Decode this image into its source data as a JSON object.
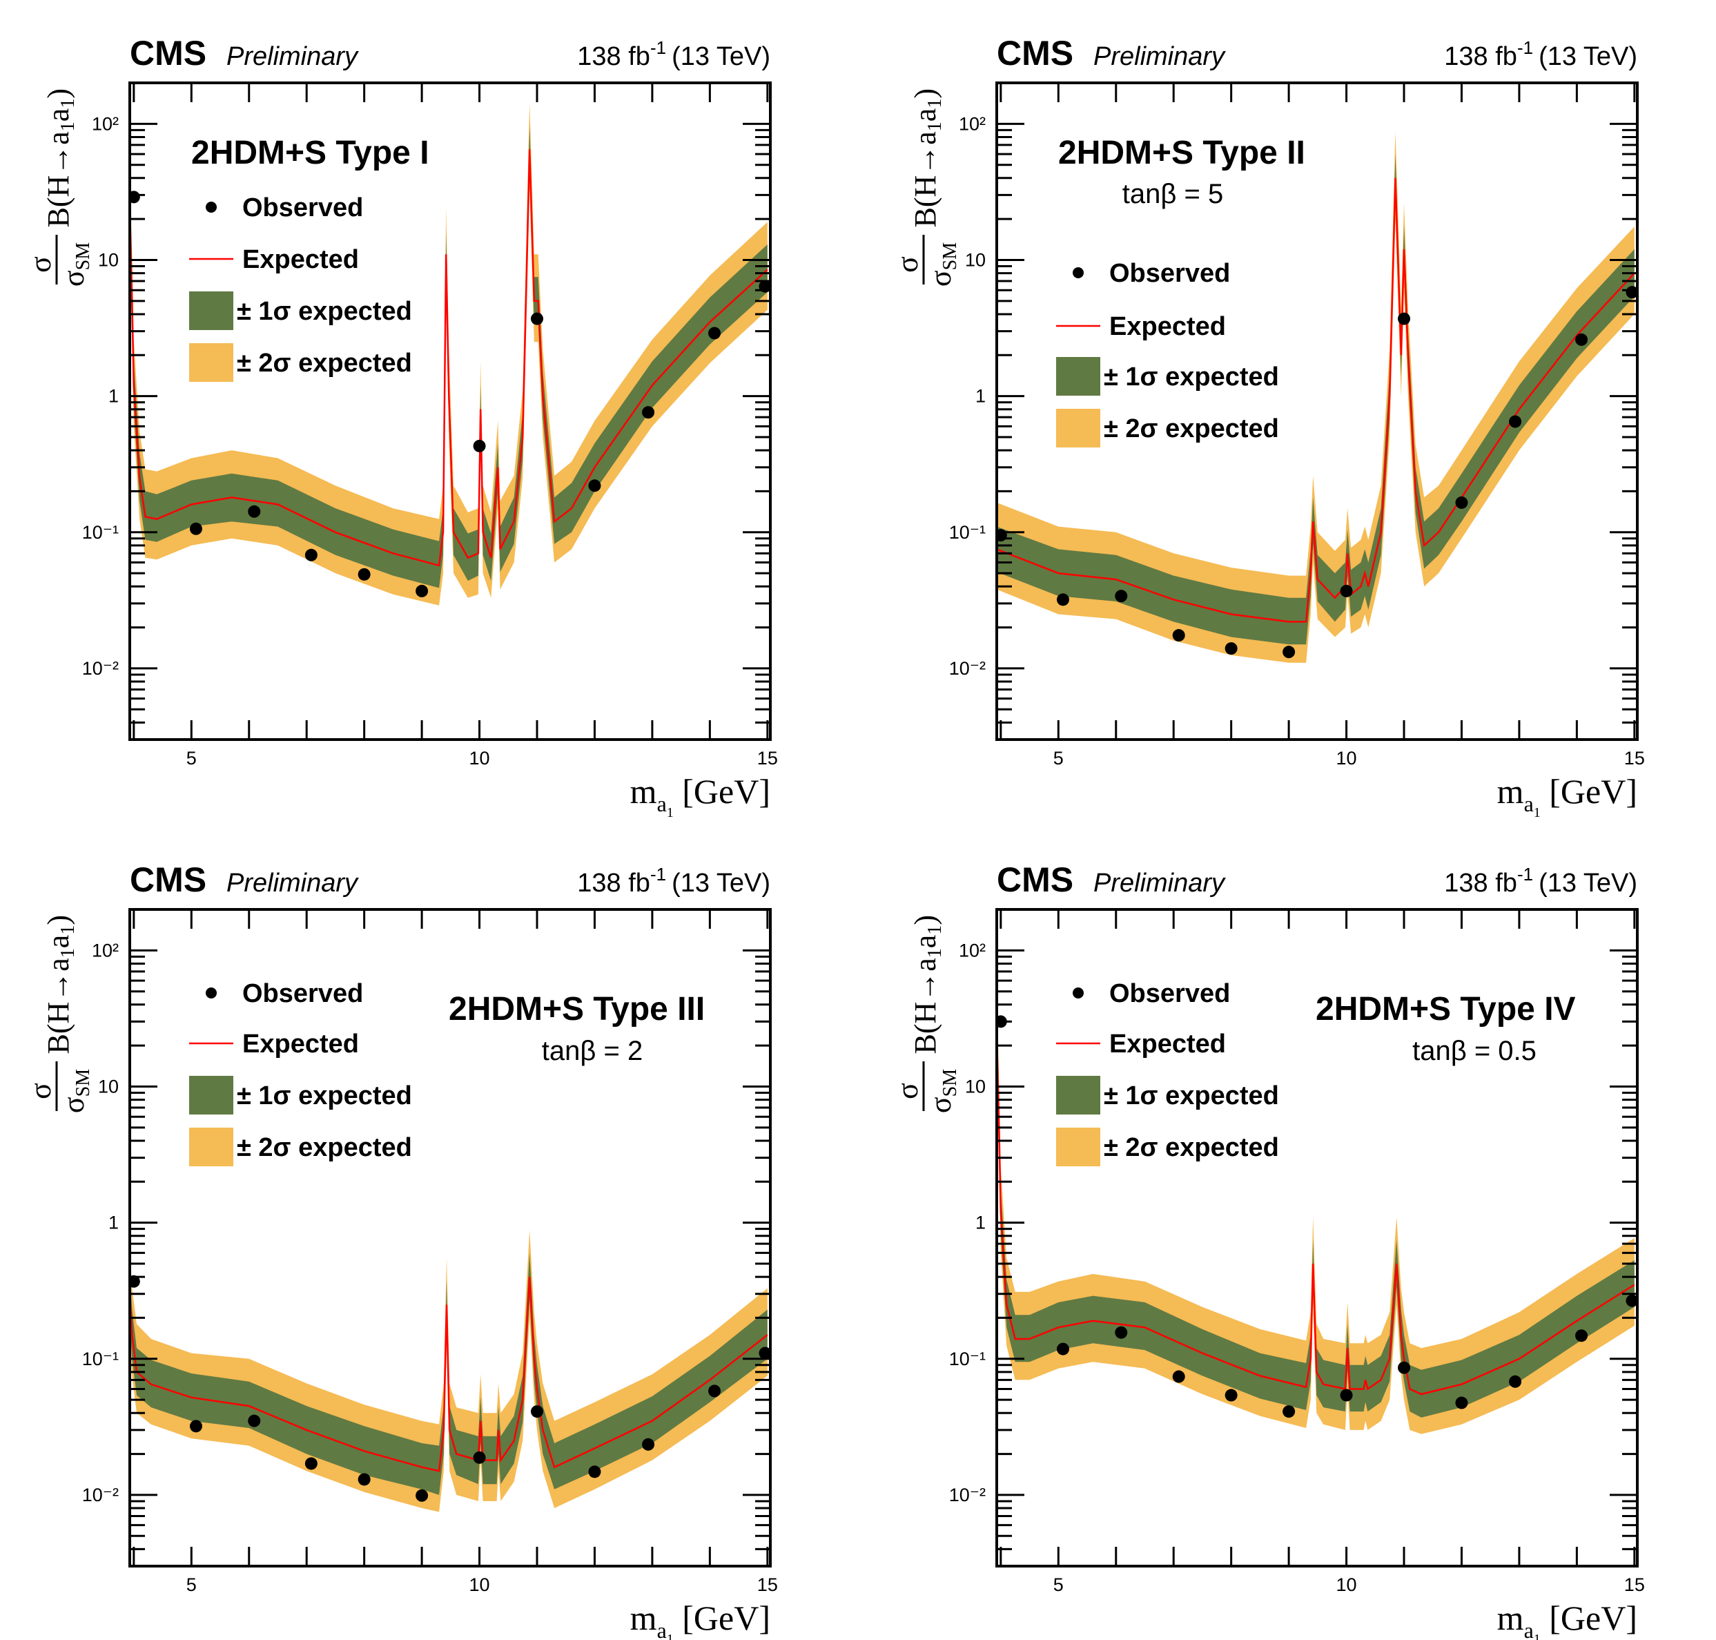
{
  "colors": {
    "band_1sigma": "#607A43",
    "band_2sigma": "#F5BB54",
    "expected": "#FF0000",
    "observed": "#000000"
  },
  "header": {
    "experiment": "CMS",
    "status": "Preliminary",
    "lumi": "138 fb",
    "lumi_sup": "-1",
    "energy": "(13 TeV)"
  },
  "legend": {
    "observed": "Observed",
    "expected": "Expected",
    "band_1sigma": "± 1σ expected",
    "band_2sigma": "± 2σ expected"
  },
  "axes": {
    "x_label": {
      "main": "m",
      "sub": "a",
      "subsub": "1",
      "unit": " [GeV]"
    },
    "y_label": {
      "num": "σ",
      "den": "σ",
      "den_sub": "SM",
      "text": "B(H→a",
      "sub1": "1",
      "mid": "a",
      "sub2": "1",
      "end": ")"
    }
  },
  "chart_data": [
    {
      "type": "line",
      "title": "2HDM+S Type I",
      "subtitle": "",
      "xlim": [
        3.93,
        15.05
      ],
      "ylim": [
        0.003,
        200
      ],
      "yscale": "log",
      "x_ticks": [
        {
          "value": 5,
          "label": "5"
        },
        {
          "value": 10,
          "label": "10"
        },
        {
          "value": 15,
          "label": "15"
        }
      ],
      "y_ticks": [
        {
          "value": 100,
          "label": "10²"
        },
        {
          "value": 10,
          "label": "10"
        },
        {
          "value": 1,
          "label": "1"
        },
        {
          "value": 0.1,
          "label": "10⁻¹"
        },
        {
          "value": 0.01,
          "label": "10⁻²"
        }
      ],
      "observed": {
        "x": [
          4.0,
          5.08,
          6.09,
          7.08,
          8.0,
          9.0,
          10.0,
          11.0,
          12.0,
          12.93,
          14.08,
          14.96
        ],
        "y": [
          29,
          0.106,
          0.142,
          0.068,
          0.049,
          0.037,
          0.43,
          3.7,
          0.22,
          0.76,
          2.9,
          6.4
        ]
      },
      "expected": {
        "x": [
          3.93,
          3.97,
          4.0,
          4.1,
          4.2,
          4.4,
          5.0,
          5.7,
          6.5,
          7.5,
          8.5,
          9.3,
          9.37,
          9.42,
          9.47,
          9.55,
          9.8,
          9.98,
          10.02,
          10.06,
          10.2,
          10.32,
          10.36,
          10.6,
          10.75,
          10.87,
          10.95,
          11.02,
          11.1,
          11.3,
          11.6,
          12,
          13,
          14,
          15
        ],
        "median": [
          25,
          5,
          1.2,
          0.25,
          0.13,
          0.125,
          0.16,
          0.18,
          0.16,
          0.1,
          0.07,
          0.057,
          0.1,
          11,
          1,
          0.1,
          0.065,
          0.07,
          0.8,
          0.1,
          0.065,
          0.3,
          0.075,
          0.12,
          0.5,
          65,
          5,
          5,
          1,
          0.12,
          0.15,
          0.3,
          1.2,
          3.5,
          8.5
        ],
        "minus1": [
          17,
          3.4,
          0.82,
          0.17,
          0.088,
          0.085,
          0.11,
          0.12,
          0.11,
          0.068,
          0.048,
          0.039,
          0.068,
          7.5,
          0.68,
          0.068,
          0.044,
          0.048,
          0.54,
          0.068,
          0.044,
          0.2,
          0.051,
          0.082,
          0.34,
          44,
          3.4,
          3.4,
          0.68,
          0.082,
          0.1,
          0.2,
          0.82,
          2.4,
          5.8
        ],
        "plus1": [
          38,
          7.5,
          1.8,
          0.38,
          0.2,
          0.19,
          0.24,
          0.27,
          0.24,
          0.15,
          0.105,
          0.086,
          0.15,
          16,
          1.5,
          0.15,
          0.098,
          0.105,
          1.2,
          0.15,
          0.098,
          0.45,
          0.11,
          0.18,
          0.75,
          98,
          7.5,
          7.5,
          1.5,
          0.18,
          0.23,
          0.45,
          1.8,
          5.3,
          13
        ],
        "minus2": [
          12.5,
          2.5,
          0.6,
          0.125,
          0.065,
          0.063,
          0.08,
          0.09,
          0.08,
          0.05,
          0.035,
          0.029,
          0.05,
          5.5,
          0.5,
          0.05,
          0.033,
          0.035,
          0.4,
          0.05,
          0.033,
          0.15,
          0.038,
          0.06,
          0.25,
          33,
          2.5,
          2.5,
          0.5,
          0.06,
          0.075,
          0.15,
          0.6,
          1.75,
          4.3
        ],
        "plus2": [
          55,
          11,
          2.6,
          0.55,
          0.29,
          0.28,
          0.35,
          0.4,
          0.35,
          0.22,
          0.15,
          0.125,
          0.22,
          24,
          2.2,
          0.22,
          0.14,
          0.15,
          1.8,
          0.22,
          0.14,
          0.66,
          0.17,
          0.26,
          1.1,
          143,
          11,
          11,
          2.2,
          0.26,
          0.33,
          0.66,
          2.6,
          7.7,
          19
        ]
      }
    },
    {
      "type": "line",
      "title": "2HDM+S Type II",
      "subtitle": "tanβ = 5",
      "xlim": [
        3.93,
        15.05
      ],
      "ylim": [
        0.003,
        200
      ],
      "yscale": "log",
      "x_ticks": [
        {
          "value": 5,
          "label": "5"
        },
        {
          "value": 10,
          "label": "10"
        },
        {
          "value": 15,
          "label": "15"
        }
      ],
      "y_ticks": [
        {
          "value": 100,
          "label": "10²"
        },
        {
          "value": 10,
          "label": "10"
        },
        {
          "value": 1,
          "label": "1"
        },
        {
          "value": 0.1,
          "label": "10⁻¹"
        },
        {
          "value": 0.01,
          "label": "10⁻²"
        }
      ],
      "observed": {
        "x": [
          4.0,
          5.08,
          6.09,
          7.09,
          8.0,
          9.0,
          10.0,
          11.0,
          12.0,
          12.93,
          14.08,
          14.96
        ],
        "y": [
          0.095,
          0.032,
          0.034,
          0.0175,
          0.014,
          0.0132,
          0.037,
          3.7,
          0.165,
          0.65,
          2.6,
          5.8
        ]
      },
      "expected": {
        "x": [
          3.93,
          5,
          6,
          7,
          8,
          9,
          9.3,
          9.38,
          9.42,
          9.5,
          9.8,
          9.98,
          10.02,
          10.08,
          10.25,
          10.32,
          10.38,
          10.6,
          10.75,
          10.85,
          10.95,
          11.0,
          11.07,
          11.2,
          11.35,
          11.6,
          12,
          13,
          14,
          15
        ],
        "median": [
          0.075,
          0.05,
          0.045,
          0.032,
          0.025,
          0.022,
          0.022,
          0.05,
          0.12,
          0.045,
          0.033,
          0.04,
          0.07,
          0.035,
          0.04,
          0.05,
          0.04,
          0.1,
          1,
          40,
          2,
          12,
          2,
          0.2,
          0.08,
          0.1,
          0.18,
          0.8,
          2.8,
          8
        ],
        "minus1": [
          0.051,
          0.034,
          0.031,
          0.022,
          0.017,
          0.015,
          0.015,
          0.034,
          0.082,
          0.031,
          0.022,
          0.027,
          0.048,
          0.024,
          0.027,
          0.034,
          0.027,
          0.068,
          0.68,
          27,
          1.4,
          8.2,
          1.4,
          0.14,
          0.054,
          0.068,
          0.12,
          0.54,
          1.9,
          5.4
        ],
        "plus1": [
          0.11,
          0.075,
          0.068,
          0.048,
          0.038,
          0.033,
          0.033,
          0.075,
          0.18,
          0.068,
          0.05,
          0.06,
          0.105,
          0.053,
          0.06,
          0.075,
          0.06,
          0.15,
          1.5,
          60,
          3,
          18,
          3,
          0.3,
          0.12,
          0.15,
          0.27,
          1.2,
          4.2,
          12
        ],
        "minus2": [
          0.038,
          0.025,
          0.023,
          0.016,
          0.0125,
          0.011,
          0.011,
          0.025,
          0.06,
          0.023,
          0.017,
          0.02,
          0.035,
          0.018,
          0.02,
          0.025,
          0.02,
          0.05,
          0.5,
          20,
          1,
          6,
          1,
          0.1,
          0.04,
          0.05,
          0.09,
          0.4,
          1.4,
          4
        ],
        "plus2": [
          0.165,
          0.11,
          0.1,
          0.07,
          0.055,
          0.048,
          0.048,
          0.11,
          0.26,
          0.1,
          0.073,
          0.088,
          0.15,
          0.077,
          0.088,
          0.11,
          0.088,
          0.22,
          2.2,
          88,
          4.4,
          26,
          4.4,
          0.44,
          0.18,
          0.22,
          0.4,
          1.8,
          6.2,
          17.6
        ]
      }
    },
    {
      "type": "line",
      "title": "2HDM+S Type III",
      "subtitle": "tanβ = 2",
      "xlim": [
        3.93,
        15.05
      ],
      "ylim": [
        0.003,
        200
      ],
      "yscale": "log",
      "x_ticks": [
        {
          "value": 5,
          "label": "5"
        },
        {
          "value": 10,
          "label": "10"
        },
        {
          "value": 15,
          "label": "15"
        }
      ],
      "y_ticks": [
        {
          "value": 100,
          "label": "10²"
        },
        {
          "value": 10,
          "label": "10"
        },
        {
          "value": 1,
          "label": "1"
        },
        {
          "value": 0.1,
          "label": "10⁻¹"
        },
        {
          "value": 0.01,
          "label": "10⁻²"
        }
      ],
      "observed": {
        "x": [
          4.0,
          5.08,
          6.09,
          7.08,
          8.0,
          9.0,
          10.0,
          11.0,
          12.0,
          12.93,
          14.08,
          14.96
        ],
        "y": [
          0.37,
          0.032,
          0.035,
          0.017,
          0.013,
          0.0099,
          0.0188,
          0.041,
          0.0148,
          0.0235,
          0.058,
          0.11
        ]
      },
      "expected": {
        "x": [
          3.93,
          3.97,
          4.05,
          4.3,
          5,
          6,
          7,
          8,
          9,
          9.3,
          9.38,
          9.43,
          9.48,
          9.6,
          9.98,
          10.02,
          10.06,
          10.3,
          10.33,
          10.37,
          10.6,
          10.75,
          10.87,
          10.95,
          11.0,
          11.1,
          11.3,
          12,
          13,
          14,
          15
        ],
        "median": [
          0.3,
          0.15,
          0.08,
          0.065,
          0.052,
          0.045,
          0.03,
          0.021,
          0.016,
          0.015,
          0.03,
          0.25,
          0.03,
          0.02,
          0.018,
          0.035,
          0.018,
          0.018,
          0.03,
          0.018,
          0.025,
          0.05,
          0.4,
          0.1,
          0.06,
          0.03,
          0.016,
          0.022,
          0.035,
          0.07,
          0.15
        ],
        "minus1": [
          0.2,
          0.1,
          0.054,
          0.044,
          0.035,
          0.031,
          0.02,
          0.014,
          0.011,
          0.01,
          0.02,
          0.17,
          0.02,
          0.014,
          0.012,
          0.024,
          0.012,
          0.012,
          0.02,
          0.012,
          0.017,
          0.034,
          0.27,
          0.068,
          0.041,
          0.02,
          0.011,
          0.015,
          0.024,
          0.048,
          0.1
        ],
        "plus1": [
          0.45,
          0.23,
          0.12,
          0.098,
          0.078,
          0.068,
          0.045,
          0.032,
          0.024,
          0.023,
          0.045,
          0.38,
          0.045,
          0.03,
          0.027,
          0.053,
          0.027,
          0.027,
          0.045,
          0.027,
          0.038,
          0.075,
          0.6,
          0.15,
          0.09,
          0.045,
          0.024,
          0.033,
          0.053,
          0.105,
          0.23
        ],
        "minus2": [
          0.15,
          0.075,
          0.04,
          0.033,
          0.026,
          0.023,
          0.015,
          0.0105,
          0.008,
          0.0075,
          0.015,
          0.125,
          0.015,
          0.01,
          0.009,
          0.018,
          0.009,
          0.009,
          0.015,
          0.009,
          0.0125,
          0.025,
          0.2,
          0.05,
          0.03,
          0.015,
          0.008,
          0.011,
          0.018,
          0.035,
          0.075
        ],
        "plus2": [
          0.66,
          0.33,
          0.18,
          0.14,
          0.11,
          0.1,
          0.066,
          0.046,
          0.035,
          0.033,
          0.066,
          0.55,
          0.066,
          0.044,
          0.04,
          0.077,
          0.04,
          0.04,
          0.066,
          0.04,
          0.055,
          0.11,
          0.88,
          0.22,
          0.13,
          0.066,
          0.035,
          0.048,
          0.077,
          0.15,
          0.33
        ]
      }
    },
    {
      "type": "line",
      "title": "2HDM+S Type IV",
      "subtitle": "tanβ = 0.5",
      "xlim": [
        3.93,
        15.05
      ],
      "ylim": [
        0.003,
        200
      ],
      "yscale": "log",
      "x_ticks": [
        {
          "value": 5,
          "label": "5"
        },
        {
          "value": 10,
          "label": "10"
        },
        {
          "value": 15,
          "label": "15"
        }
      ],
      "y_ticks": [
        {
          "value": 100,
          "label": "10²"
        },
        {
          "value": 10,
          "label": "10"
        },
        {
          "value": 1,
          "label": "1"
        },
        {
          "value": 0.1,
          "label": "10⁻¹"
        },
        {
          "value": 0.01,
          "label": "10⁻²"
        }
      ],
      "observed": {
        "x": [
          4.0,
          5.08,
          6.09,
          7.09,
          8.0,
          9.0,
          10.0,
          11.0,
          12.0,
          12.93,
          14.08,
          14.96
        ],
        "y": [
          30,
          0.118,
          0.156,
          0.074,
          0.054,
          0.041,
          0.054,
          0.086,
          0.0475,
          0.068,
          0.148,
          0.267
        ]
      },
      "expected": {
        "x": [
          3.93,
          3.97,
          4.0,
          4.1,
          4.25,
          4.5,
          5,
          5.6,
          6.5,
          7.5,
          8.5,
          9.3,
          9.38,
          9.42,
          9.48,
          9.6,
          9.98,
          10.02,
          10.06,
          10.3,
          10.33,
          10.37,
          10.6,
          10.75,
          10.87,
          10.95,
          11.0,
          11.1,
          11.3,
          12,
          13,
          14,
          15
        ],
        "median": [
          25,
          5,
          1.2,
          0.25,
          0.14,
          0.14,
          0.17,
          0.19,
          0.17,
          0.11,
          0.075,
          0.062,
          0.1,
          0.5,
          0.08,
          0.065,
          0.06,
          0.12,
          0.06,
          0.06,
          0.07,
          0.06,
          0.07,
          0.1,
          0.5,
          0.15,
          0.1,
          0.06,
          0.055,
          0.065,
          0.1,
          0.19,
          0.35
        ],
        "minus1": [
          17,
          3.4,
          0.82,
          0.17,
          0.095,
          0.095,
          0.116,
          0.13,
          0.116,
          0.075,
          0.051,
          0.042,
          0.068,
          0.34,
          0.054,
          0.044,
          0.041,
          0.082,
          0.041,
          0.041,
          0.048,
          0.041,
          0.048,
          0.068,
          0.34,
          0.1,
          0.068,
          0.041,
          0.037,
          0.044,
          0.068,
          0.13,
          0.24
        ],
        "plus1": [
          38,
          7.5,
          1.8,
          0.38,
          0.21,
          0.21,
          0.26,
          0.29,
          0.26,
          0.165,
          0.11,
          0.093,
          0.15,
          0.75,
          0.12,
          0.098,
          0.09,
          0.18,
          0.09,
          0.09,
          0.105,
          0.09,
          0.105,
          0.15,
          0.75,
          0.23,
          0.15,
          0.09,
          0.083,
          0.098,
          0.15,
          0.29,
          0.53
        ],
        "minus2": [
          12.5,
          2.5,
          0.6,
          0.125,
          0.07,
          0.07,
          0.085,
          0.095,
          0.085,
          0.055,
          0.038,
          0.031,
          0.05,
          0.25,
          0.04,
          0.033,
          0.03,
          0.06,
          0.03,
          0.03,
          0.035,
          0.03,
          0.035,
          0.05,
          0.25,
          0.075,
          0.05,
          0.03,
          0.028,
          0.033,
          0.05,
          0.095,
          0.175
        ],
        "plus2": [
          55,
          11,
          2.6,
          0.55,
          0.31,
          0.31,
          0.37,
          0.42,
          0.37,
          0.24,
          0.165,
          0.136,
          0.22,
          1.1,
          0.18,
          0.14,
          0.13,
          0.26,
          0.13,
          0.13,
          0.15,
          0.13,
          0.15,
          0.22,
          1.1,
          0.33,
          0.22,
          0.13,
          0.12,
          0.14,
          0.22,
          0.42,
          0.77
        ]
      }
    }
  ]
}
